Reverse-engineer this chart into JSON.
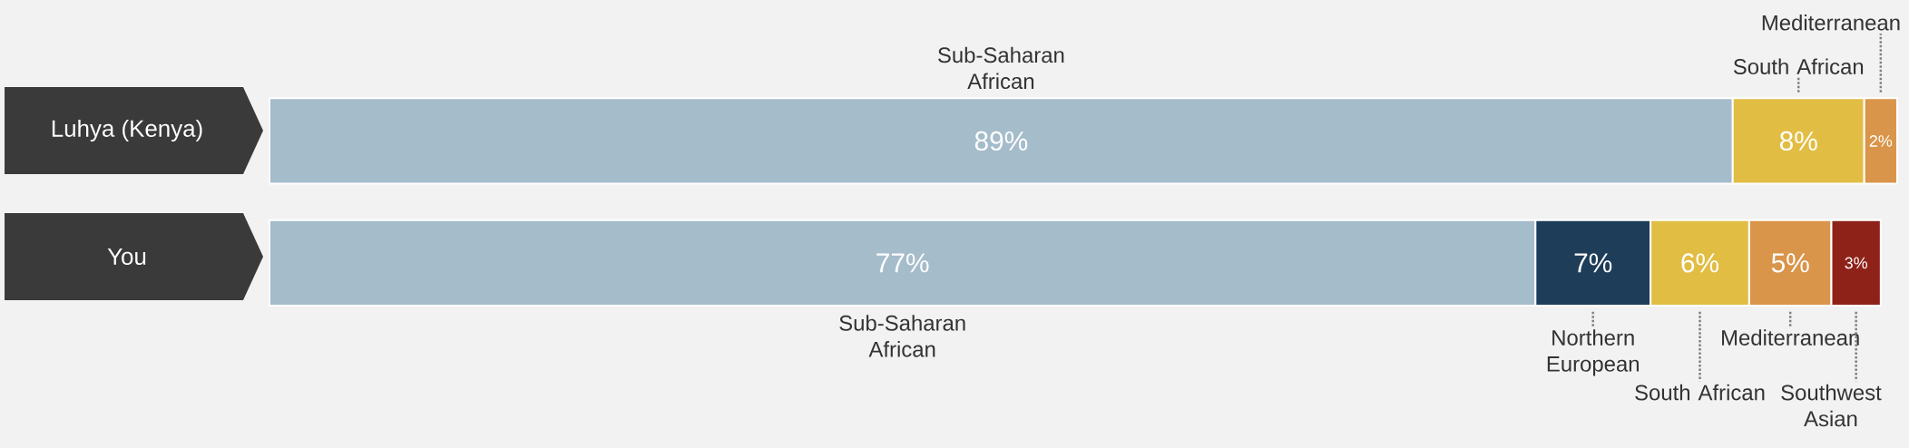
{
  "chart_data": {
    "type": "bar",
    "orientation": "horizontal",
    "stacked": true,
    "categories": [
      "Luhya (Kenya)",
      "You"
    ],
    "series": [
      {
        "name": "Sub-Saharan African",
        "color": "#a5bccb",
        "values": [
          89,
          77
        ],
        "value_labels": [
          "89%",
          "77%"
        ]
      },
      {
        "name": "Northern European",
        "color": "#1e3d59",
        "values": [
          null,
          7
        ],
        "value_labels": [
          null,
          "7%"
        ]
      },
      {
        "name": "South African",
        "color": "#e2bd44",
        "values": [
          8,
          6
        ],
        "value_labels": [
          "8%",
          "6%"
        ]
      },
      {
        "name": "Mediterranean",
        "color": "#d9954a",
        "values": [
          2,
          5
        ],
        "value_labels": [
          "2%",
          "5%"
        ]
      },
      {
        "name": "Southwest Asian",
        "color": "#8e2219",
        "values": [
          null,
          3
        ],
        "value_labels": [
          null,
          "3%"
        ]
      }
    ]
  }
}
